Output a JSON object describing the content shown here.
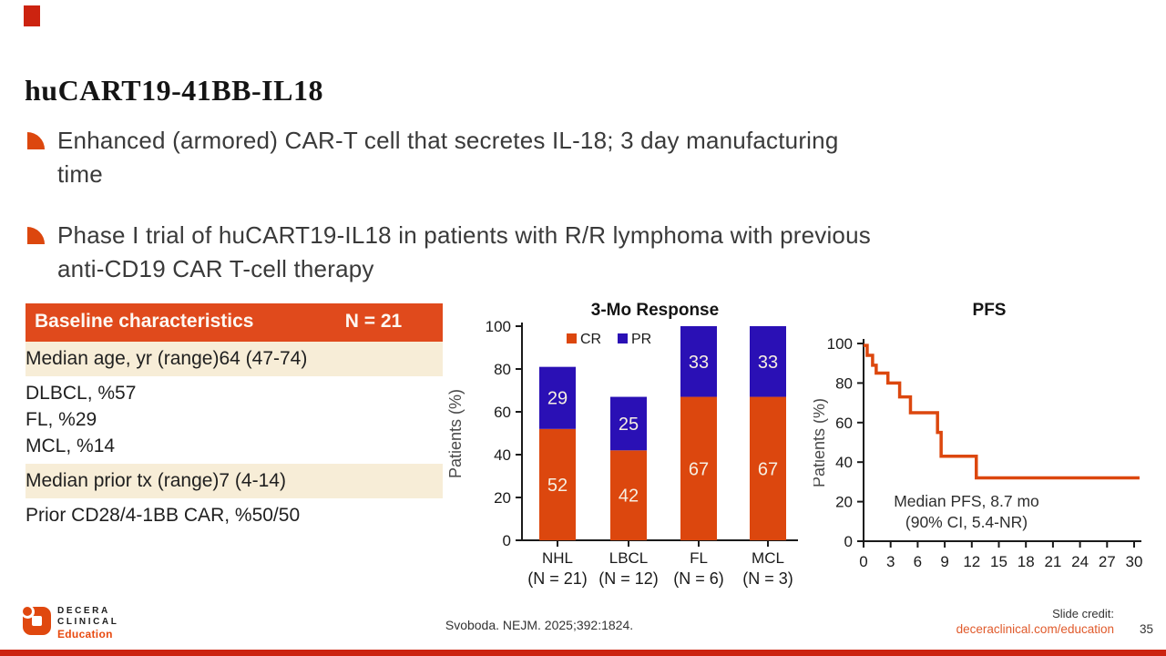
{
  "slide": {
    "title": "huCART19-41BB-IL18",
    "bullets": [
      {
        "lines": [
          "Enhanced (armored) CAR-T cell that secretes IL-18; 3 day manufacturing",
          "time"
        ]
      },
      {
        "lines": [
          "Phase I trial of huCART19-IL18 in patients with R/R lymphoma with previous",
          "anti-CD19 CAR T-cell therapy"
        ]
      }
    ]
  },
  "table": {
    "header": {
      "label": "Baseline characteristics",
      "value": "N = 21"
    },
    "rows": [
      {
        "shaded": true,
        "lines": [
          {
            "label": "Median age, yr (range)",
            "value": "64 (47-74)"
          }
        ]
      },
      {
        "shaded": false,
        "lines": [
          {
            "label": "DLBCL, %",
            "value": "57"
          },
          {
            "label": "FL, %",
            "value": "29"
          },
          {
            "label": "MCL, %",
            "value": "14"
          }
        ]
      },
      {
        "shaded": true,
        "lines": [
          {
            "label": "Median prior tx (range)",
            "value": "7 (4-14)"
          }
        ]
      },
      {
        "shaded": false,
        "lines": [
          {
            "label": "Prior CD28/4-1BB CAR, %",
            "value": "50/50"
          }
        ]
      }
    ]
  },
  "chart_data": [
    {
      "type": "bar",
      "stacked": true,
      "title": "3-Mo Response",
      "ylabel": "Patients (%)",
      "ylim": [
        0,
        100
      ],
      "yticks": [
        0,
        20,
        40,
        60,
        80,
        100
      ],
      "categories": [
        "NHL",
        "LBCL",
        "FL",
        "MCL"
      ],
      "category_sublabels": [
        "(N = 21)",
        "(N = 12)",
        "(N = 6)",
        "(N = 3)"
      ],
      "series": [
        {
          "name": "CR",
          "color": "#dc470e",
          "values": [
            52,
            42,
            67,
            67
          ]
        },
        {
          "name": "PR",
          "color": "#2a10b5",
          "values": [
            29,
            25,
            33,
            33
          ]
        }
      ],
      "legend_position": "top-left-inside",
      "grid": false
    },
    {
      "type": "line",
      "subtype": "kaplan-meier-step",
      "title": "PFS",
      "ylabel": "Patients (%)",
      "xlim": [
        0,
        30
      ],
      "ylim": [
        0,
        100
      ],
      "xticks": [
        0,
        3,
        6,
        9,
        12,
        15,
        18,
        21,
        24,
        27,
        30
      ],
      "yticks": [
        0,
        20,
        40,
        60,
        80,
        100
      ],
      "color": "#dc470e",
      "steps": [
        [
          0,
          99
        ],
        [
          0.4,
          94
        ],
        [
          1.0,
          89
        ],
        [
          1.4,
          85
        ],
        [
          2.7,
          80
        ],
        [
          4.0,
          73
        ],
        [
          5.2,
          65
        ],
        [
          8.2,
          55
        ],
        [
          8.6,
          43
        ],
        [
          12.5,
          32
        ]
      ],
      "x_end": 30.6,
      "annotation": [
        "Median PFS, 8.7 mo",
        "(90% CI, 5.4-NR)"
      ],
      "grid": false
    }
  ],
  "footer": {
    "logo": {
      "line1": "DECERA",
      "line2": "CLINICAL",
      "line3": "Education"
    },
    "citation": "Svoboda. NEJM. 2025;392:1824.",
    "credit_label": "Slide credit:",
    "credit_link": "deceraclinical.com/education",
    "page_number": "35"
  },
  "colors": {
    "accent_orange": "#dc470e",
    "table_header": "#e04a1c",
    "row_shade": "#f7edd7",
    "bar_blue": "#2a10b5",
    "red_mark": "#cc2310",
    "link_orange": "#e05a2b",
    "bar_value_text": "#f6efe2"
  }
}
